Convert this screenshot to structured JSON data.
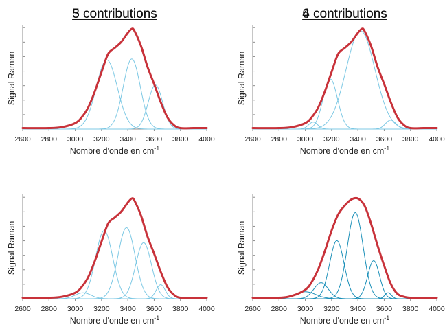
{
  "colors": {
    "envelope": "#c8323a",
    "component_light": "#7cc8e4",
    "component_dark": "#1a8fb8",
    "axis": "#8c8c8c"
  },
  "chart_data": [
    {
      "type": "line",
      "title": "3 contributions",
      "xlabel": "Nombre d'onde en cm",
      "xlabel_sup": "-1",
      "ylabel": "Signal Raman",
      "xlim": [
        2600,
        4000
      ],
      "xticks": [
        2600,
        2800,
        3000,
        3200,
        3400,
        3600,
        3800,
        4000
      ],
      "ylim": [
        0,
        1
      ],
      "component_style": "light",
      "envelope": {
        "x": [
          2600,
          2800,
          2900,
          3000,
          3050,
          3100,
          3150,
          3200,
          3250,
          3300,
          3350,
          3400,
          3430,
          3450,
          3500,
          3550,
          3600,
          3650,
          3700,
          3750,
          3800,
          3900,
          4000
        ],
        "y": [
          0.01,
          0.01,
          0.02,
          0.06,
          0.12,
          0.22,
          0.38,
          0.57,
          0.75,
          0.81,
          0.87,
          0.96,
          1.0,
          0.98,
          0.83,
          0.62,
          0.45,
          0.27,
          0.12,
          0.04,
          0.01,
          0.01,
          0.01
        ]
      },
      "series": [
        {
          "center": 3240,
          "amplitude": 0.69,
          "width": 80
        },
        {
          "center": 3430,
          "amplitude": 0.7,
          "width": 65
        },
        {
          "center": 3610,
          "amplitude": 0.44,
          "width": 55
        }
      ]
    },
    {
      "type": "line",
      "title": "4 contributions",
      "xlabel": "Nombre d'onde en cm",
      "xlabel_sup": "-1",
      "ylabel": "Signal Raman",
      "xlim": [
        2600,
        4000
      ],
      "xticks": [
        2600,
        2800,
        3000,
        3200,
        3400,
        3600,
        3800,
        4000
      ],
      "ylim": [
        0,
        1
      ],
      "component_style": "light",
      "envelope": {
        "x": [
          2600,
          2800,
          2900,
          3000,
          3050,
          3100,
          3150,
          3200,
          3250,
          3300,
          3350,
          3400,
          3430,
          3450,
          3500,
          3550,
          3600,
          3650,
          3700,
          3750,
          3800,
          3900,
          4000
        ],
        "y": [
          0.01,
          0.01,
          0.02,
          0.06,
          0.12,
          0.22,
          0.38,
          0.57,
          0.75,
          0.81,
          0.87,
          0.96,
          1.0,
          0.98,
          0.83,
          0.62,
          0.45,
          0.27,
          0.12,
          0.04,
          0.01,
          0.01,
          0.01
        ]
      },
      "series": [
        {
          "center": 3060,
          "amplitude": 0.07,
          "width": 35
        },
        {
          "center": 3190,
          "amplitude": 0.5,
          "width": 55
        },
        {
          "center": 3420,
          "amplitude": 0.98,
          "width": 110
        },
        {
          "center": 3650,
          "amplitude": 0.09,
          "width": 40
        }
      ]
    },
    {
      "type": "line",
      "title": "5 contributions",
      "xlabel": "Nombre d'onde en cm",
      "xlabel_sup": "-1",
      "ylabel": "Signal Raman",
      "xlim": [
        2600,
        4000
      ],
      "xticks": [
        2600,
        2800,
        3000,
        3200,
        3400,
        3600,
        3800,
        4000
      ],
      "ylim": [
        0,
        1
      ],
      "component_style": "light",
      "envelope": {
        "x": [
          2600,
          2800,
          2900,
          3000,
          3050,
          3100,
          3150,
          3200,
          3250,
          3300,
          3350,
          3400,
          3430,
          3450,
          3500,
          3550,
          3600,
          3650,
          3700,
          3750,
          3800,
          3900,
          4000
        ],
        "y": [
          0.01,
          0.01,
          0.02,
          0.06,
          0.12,
          0.22,
          0.38,
          0.57,
          0.75,
          0.81,
          0.87,
          0.96,
          1.0,
          0.98,
          0.83,
          0.62,
          0.45,
          0.27,
          0.12,
          0.04,
          0.01,
          0.01,
          0.01
        ]
      },
      "series": [
        {
          "center": 3060,
          "amplitude": 0.06,
          "width": 60
        },
        {
          "center": 3220,
          "amplitude": 0.68,
          "width": 65
        },
        {
          "center": 3390,
          "amplitude": 0.71,
          "width": 65
        },
        {
          "center": 3520,
          "amplitude": 0.56,
          "width": 60
        },
        {
          "center": 3650,
          "amplitude": 0.14,
          "width": 35
        }
      ]
    },
    {
      "type": "line",
      "title": "6 contributions",
      "xlabel": "Nombre d'onde en cm",
      "xlabel_sup": "-1",
      "ylabel": "Signal Raman",
      "xlim": [
        2600,
        4000
      ],
      "xticks": [
        2600,
        2800,
        3000,
        3200,
        3400,
        3600,
        3800,
        4000
      ],
      "ylim": [
        0,
        1
      ],
      "component_style": "dark",
      "envelope": {
        "x": [
          2600,
          2800,
          2900,
          3000,
          3050,
          3100,
          3150,
          3200,
          3250,
          3300,
          3350,
          3400,
          3450,
          3500,
          3550,
          3600,
          3650,
          3700,
          3750,
          3800,
          3900,
          4000
        ],
        "y": [
          0.01,
          0.01,
          0.03,
          0.09,
          0.17,
          0.3,
          0.48,
          0.68,
          0.84,
          0.93,
          0.99,
          1.0,
          0.93,
          0.75,
          0.53,
          0.33,
          0.15,
          0.05,
          0.02,
          0.01,
          0.01,
          0.01
        ]
      },
      "series": [
        {
          "center": 3000,
          "amplitude": 0.07,
          "width": 80
        },
        {
          "center": 3120,
          "amplitude": 0.16,
          "width": 55
        },
        {
          "center": 3240,
          "amplitude": 0.58,
          "width": 55
        },
        {
          "center": 3380,
          "amplitude": 0.86,
          "width": 60
        },
        {
          "center": 3520,
          "amplitude": 0.38,
          "width": 45
        },
        {
          "center": 3630,
          "amplitude": 0.06,
          "width": 25
        }
      ]
    }
  ]
}
